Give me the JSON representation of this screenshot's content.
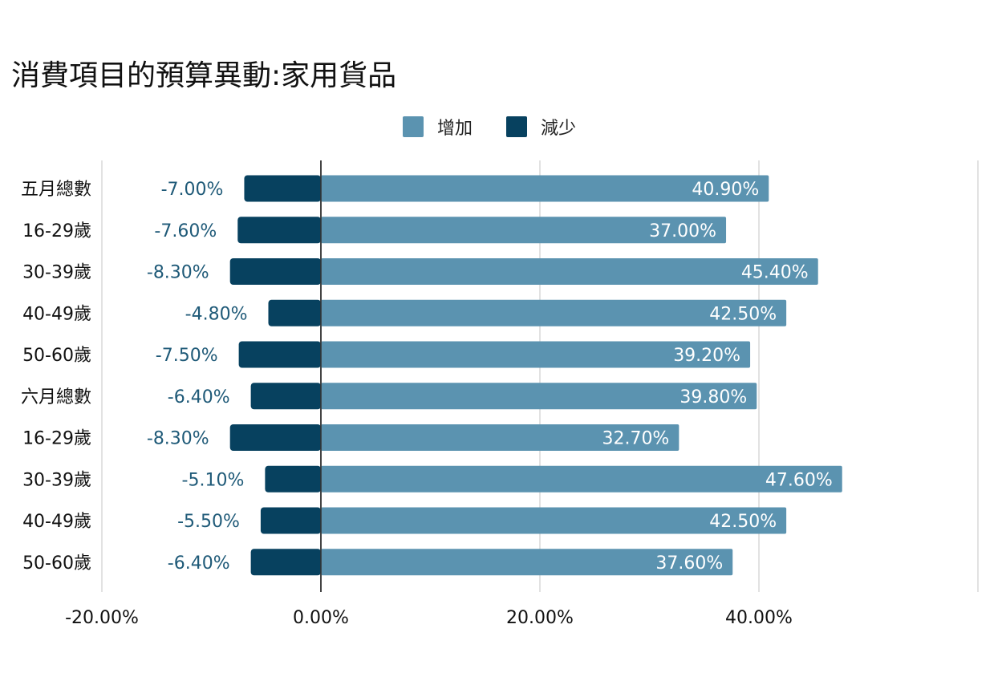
{
  "chart_data": {
    "type": "bar",
    "orientation": "horizontal",
    "stacked": "diverging",
    "title": "消費項目的預算異動:家用貨品",
    "categories": [
      "五月總數",
      "16-29歲",
      "30-39歲",
      "40-49歲",
      "50-60歲",
      "六月總數",
      "16-29歲",
      "30-39歲",
      "40-49歲",
      "50-60歲"
    ],
    "series": [
      {
        "name": "增加",
        "color": "#5b93b0",
        "values": [
          40.9,
          37.0,
          45.4,
          42.5,
          39.2,
          39.8,
          32.7,
          47.6,
          42.5,
          37.6
        ],
        "labels": [
          "40.90%",
          "37.00%",
          "45.40%",
          "42.50%",
          "39.20%",
          "39.80%",
          "32.70%",
          "47.60%",
          "42.50%",
          "37.60%"
        ]
      },
      {
        "name": "減少",
        "color": "#07415f",
        "values": [
          -7.0,
          -7.6,
          -8.3,
          -4.8,
          -7.5,
          -6.4,
          -8.3,
          -5.1,
          -5.5,
          -6.4
        ],
        "labels": [
          "-7.00%",
          "-7.60%",
          "-8.30%",
          "-4.80%",
          "-7.50%",
          "-6.40%",
          "-8.30%",
          "-5.10%",
          "-5.50%",
          "-6.40%"
        ]
      }
    ],
    "xlim": [
      -20,
      60
    ],
    "xticks": [
      -20,
      0,
      20,
      40
    ],
    "xtick_labels": [
      "-20.00%",
      "0.00%",
      "20.00%",
      "40.00%"
    ],
    "grid": true,
    "legend_position": "top-center"
  }
}
